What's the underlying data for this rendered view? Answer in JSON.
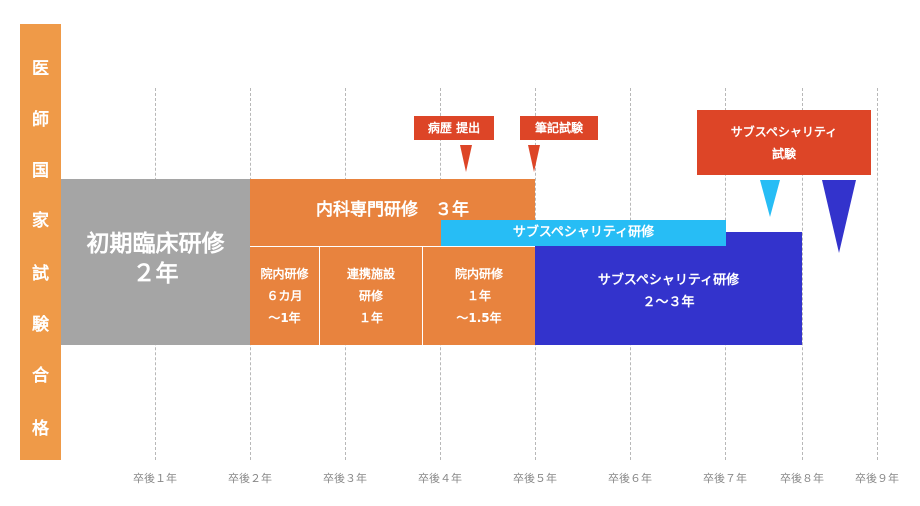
{
  "side_label": [
    "医",
    "師",
    "国",
    "家",
    "試",
    "験",
    "合",
    "格"
  ],
  "years": [
    "卒後１年",
    "卒後２年",
    "卒後３年",
    "卒後４年",
    "卒後５年",
    "卒後６年",
    "卒後７年",
    "卒後８年",
    "卒後９年"
  ],
  "initial_training": {
    "title": "初期臨床研修",
    "duration": "２年"
  },
  "internal_medicine": {
    "title": "内科専門研修　３年"
  },
  "subspecialty_overlap": {
    "label": "サブスペシャリティ研修"
  },
  "rotations": [
    {
      "lines": [
        "院内研修",
        "６カ月",
        "～1年"
      ]
    },
    {
      "lines": [
        "連携施設",
        "研修",
        "１年"
      ]
    },
    {
      "lines": [
        "院内研修",
        "１年",
        "～1.5年"
      ]
    }
  ],
  "subspecialty_training": {
    "lines": [
      "サブスペシャリティ研修",
      "２～３年"
    ]
  },
  "milestones": {
    "case_history": "病歴 提出",
    "written_exam": "筆記試験",
    "subspecialty_exam": [
      "サブスペシャリティ",
      "試験"
    ]
  },
  "colors": {
    "side_bar": "#ef9a48",
    "initial_training": "#a5a5a5",
    "internal_medicine": "#e8833e",
    "subspecialty_overlap": "#27bdf5",
    "subspecialty_training": "#3333cc",
    "milestone_flag": "#dd4527"
  }
}
